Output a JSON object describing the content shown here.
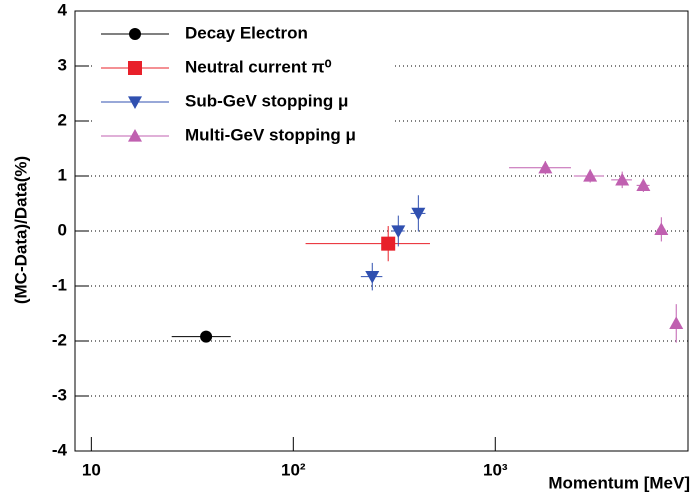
{
  "chart_data": {
    "type": "scatter",
    "x_label": "Momentum [MeV]",
    "y_label": "(MC-Data)/Data(%)",
    "xscale": "log",
    "xlim": [
      8.3,
      9000
    ],
    "xticks": [
      10,
      {
        "value": 100,
        "label": "10²"
      },
      {
        "value": 1000,
        "label": "10³"
      }
    ],
    "ylim": [
      -4,
      4
    ],
    "yticks": [
      -4,
      -3,
      -2,
      -1,
      0,
      1,
      2,
      3,
      4
    ],
    "grid": true,
    "legend": "upper left",
    "series": [
      {
        "name": "Decay Electron",
        "color": "#000000",
        "marker": "circle",
        "x": [
          37
        ],
        "values": [
          -1.92
        ],
        "xerr": [
          12
        ],
        "yerr": [
          0.08
        ]
      },
      {
        "name": "Neutral current π⁰",
        "color": "#e8202a",
        "marker": "square",
        "x": [
          295
        ],
        "values": [
          -0.23
        ],
        "xerr": [
          180
        ],
        "yerr": [
          0.32
        ]
      },
      {
        "name": "Sub-GeV stopping μ",
        "color": "#3050b0",
        "marker": "triangle-down",
        "x": [
          246,
          331,
          416
        ],
        "values": [
          -0.83,
          0.0,
          0.32
        ],
        "xerr": [
          30,
          25,
          35
        ],
        "yerr": [
          0.25,
          0.28,
          0.33
        ]
      },
      {
        "name": "Multi-GeV stopping μ",
        "color": "#c060b0",
        "marker": "triangle-up",
        "x": [
          1770,
          2950,
          4250,
          5410,
          6640,
          7870
        ],
        "values": [
          1.15,
          1.0,
          0.93,
          0.83,
          0.03,
          -1.68
        ],
        "xerr": [
          600,
          500,
          500,
          400,
          300,
          300
        ],
        "yerr": [
          0.12,
          0.12,
          0.15,
          0.12,
          0.22,
          0.35
        ]
      }
    ]
  }
}
